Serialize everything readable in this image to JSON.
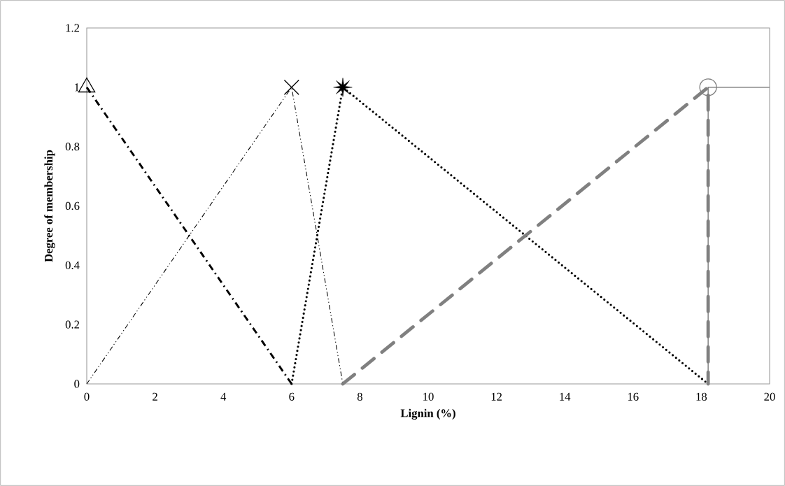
{
  "chart_data": {
    "type": "line",
    "xlabel": "Lignin (%)",
    "ylabel": "Degree of membership",
    "xlim": [
      0,
      20
    ],
    "xticks": [
      0,
      2,
      4,
      6,
      8,
      10,
      12,
      14,
      16,
      18,
      20
    ],
    "ylim": [
      0,
      1.2
    ],
    "yticks": [
      0,
      0.2,
      0.4,
      0.6,
      0.8,
      1,
      1.2
    ],
    "grid": false,
    "series": [
      {
        "color": "#000000",
        "x": [
          0,
          6
        ],
        "values": [
          1,
          0
        ],
        "line_style": "dashdot"
      },
      {
        "color": "#000000",
        "x": [
          0,
          6,
          7.5
        ],
        "values": [
          0,
          1,
          0
        ],
        "line_style": "dashdotdot"
      },
      {
        "color": "#000000",
        "x": [
          6,
          7.5,
          18.2
        ],
        "values": [
          0,
          1,
          0
        ],
        "line_style": "dotted"
      },
      {
        "color": "#808080",
        "x": [
          7.5,
          18.2,
          18.2
        ],
        "values": [
          0,
          1,
          0
        ],
        "line_style": "dashed"
      },
      {
        "color": "#808080",
        "x": [
          18.2,
          18.2,
          20
        ],
        "values": [
          0,
          1,
          1
        ],
        "line_style": "solid"
      },
      {
        "type": "scatter",
        "color": "#000000",
        "x": [
          0
        ],
        "values": [
          1
        ],
        "marker": "triangle"
      },
      {
        "type": "scatter",
        "color": "#000000",
        "x": [
          6
        ],
        "values": [
          1
        ],
        "marker": "cross"
      },
      {
        "type": "scatter",
        "color": "#000000",
        "x": [
          7.5
        ],
        "values": [
          1
        ],
        "marker": "star"
      },
      {
        "type": "scatter",
        "color": "#808080",
        "x": [
          18.2
        ],
        "values": [
          1
        ],
        "marker": "circle"
      }
    ]
  }
}
